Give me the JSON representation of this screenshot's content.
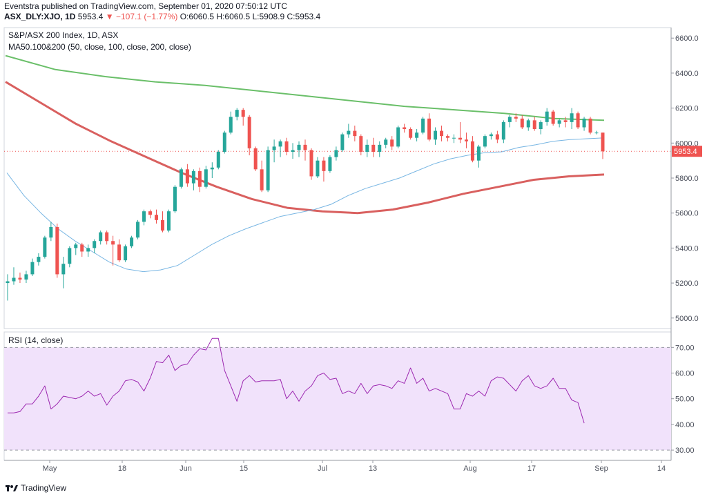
{
  "header": {
    "publisher_line": "Eventstra published on TradingView.com, September 01, 2020 07:50:12 UTC",
    "symbol": "ASX_DLY:XJO, 1D",
    "last": "5953.4",
    "change": "▼ −107.1 (−1.77%)",
    "ohlc_text": "O:6060.5 H:6060.5 L:5908.9 C:5953.4"
  },
  "price_pane_title": "S&P/ASX 200 Index, 1D, ASX",
  "ma_title": "MA50.100&200 (50, close, 100, close, 200, close)",
  "rsi_title": "RSI (14, close)",
  "footer_brand": "TradingView",
  "colors": {
    "up": "#26a69a",
    "down": "#ef5350",
    "ma50": "#78b6e3",
    "ma100": "#d9605f",
    "ma200": "#6abf69",
    "rsi": "#9c27b0",
    "rsi_band": "#f1e2fb"
  },
  "chart_data": [
    {
      "type": "candlestick",
      "title": "S&P/ASX 200 Index, 1D, ASX",
      "ylim": [
        4940,
        6660
      ],
      "y_ticks": [
        "5000.0",
        "5200.0",
        "5400.0",
        "5600.0",
        "5800.0",
        "6000.0",
        "6200.0",
        "6400.0",
        "6600.0"
      ],
      "x_tick_labels": [
        "May",
        "18",
        "Jun",
        "15",
        "Jul",
        "13",
        "Aug",
        "17",
        "Sep",
        "14"
      ],
      "last_price_label": "5953.4",
      "candles": [
        [
          5200,
          5250,
          5100,
          5210
        ],
        [
          5210,
          5290,
          5190,
          5230
        ],
        [
          5230,
          5260,
          5200,
          5220
        ],
        [
          5220,
          5270,
          5200,
          5250
        ],
        [
          5250,
          5340,
          5240,
          5320
        ],
        [
          5320,
          5370,
          5300,
          5350
        ],
        [
          5350,
          5470,
          5340,
          5460
        ],
        [
          5460,
          5550,
          5440,
          5520
        ],
        [
          5520,
          5540,
          5230,
          5250
        ],
        [
          5250,
          5350,
          5170,
          5310
        ],
        [
          5310,
          5410,
          5290,
          5400
        ],
        [
          5400,
          5430,
          5360,
          5420
        ],
        [
          5420,
          5430,
          5350,
          5380
        ],
        [
          5380,
          5420,
          5350,
          5400
        ],
        [
          5400,
          5450,
          5370,
          5440
        ],
        [
          5440,
          5500,
          5420,
          5490
        ],
        [
          5490,
          5500,
          5420,
          5440
        ],
        [
          5440,
          5470,
          5300,
          5420
        ],
        [
          5420,
          5450,
          5320,
          5330
        ],
        [
          5330,
          5420,
          5320,
          5410
        ],
        [
          5410,
          5470,
          5400,
          5460
        ],
        [
          5460,
          5560,
          5450,
          5550
        ],
        [
          5550,
          5620,
          5530,
          5610
        ],
        [
          5610,
          5620,
          5570,
          5590
        ],
        [
          5590,
          5620,
          5540,
          5560
        ],
        [
          5560,
          5610,
          5490,
          5500
        ],
        [
          5500,
          5620,
          5490,
          5610
        ],
        [
          5610,
          5760,
          5600,
          5750
        ],
        [
          5750,
          5860,
          5740,
          5850
        ],
        [
          5850,
          5880,
          5750,
          5770
        ],
        [
          5770,
          5850,
          5730,
          5840
        ],
        [
          5840,
          5860,
          5720,
          5750
        ],
        [
          5750,
          5870,
          5740,
          5850
        ],
        [
          5850,
          5890,
          5800,
          5860
        ],
        [
          5860,
          5960,
          5850,
          5950
        ],
        [
          5950,
          6070,
          5940,
          6060
        ],
        [
          6060,
          6180,
          6050,
          6150
        ],
        [
          6150,
          6200,
          6130,
          6190
        ],
        [
          6190,
          6200,
          6100,
          6150
        ],
        [
          6150,
          6160,
          5930,
          5970
        ],
        [
          5970,
          5980,
          5840,
          5850
        ],
        [
          5850,
          5900,
          5720,
          5730
        ],
        [
          5730,
          5980,
          5720,
          5960
        ],
        [
          5960,
          6020,
          5890,
          5980
        ],
        [
          5980,
          6020,
          5920,
          6010
        ],
        [
          6010,
          6030,
          5930,
          5950
        ],
        [
          5950,
          6000,
          5910,
          5960
        ],
        [
          5960,
          6010,
          5920,
          5990
        ],
        [
          5990,
          6020,
          5900,
          5960
        ],
        [
          5960,
          5970,
          5790,
          5810
        ],
        [
          5810,
          5920,
          5800,
          5900
        ],
        [
          5900,
          5920,
          5780,
          5840
        ],
        [
          5840,
          5930,
          5830,
          5920
        ],
        [
          5920,
          5980,
          5900,
          5960
        ],
        [
          5960,
          6060,
          5950,
          6050
        ],
        [
          6050,
          6110,
          6030,
          6070
        ],
        [
          6070,
          6100,
          6010,
          6040
        ],
        [
          6040,
          6050,
          5930,
          5950
        ],
        [
          5950,
          6020,
          5920,
          5990
        ],
        [
          5990,
          6030,
          5920,
          5950
        ],
        [
          5950,
          6010,
          5920,
          5990
        ],
        [
          5990,
          6030,
          5970,
          6020
        ],
        [
          6020,
          6040,
          5960,
          5980
        ],
        [
          5980,
          6100,
          5970,
          6090
        ],
        [
          6090,
          6110,
          6060,
          6080
        ],
        [
          6080,
          6090,
          6020,
          6030
        ],
        [
          6030,
          6080,
          6010,
          6060
        ],
        [
          6060,
          6150,
          6050,
          6140
        ],
        [
          6140,
          6170,
          6010,
          6020
        ],
        [
          6020,
          6090,
          5990,
          6070
        ],
        [
          6070,
          6100,
          6010,
          6040
        ],
        [
          6040,
          6050,
          6010,
          6030
        ],
        [
          6030,
          6050,
          6000,
          6030
        ],
        [
          6030,
          6120,
          6000,
          6020
        ],
        [
          6020,
          6060,
          5970,
          6010
        ],
        [
          6010,
          6040,
          5890,
          5900
        ],
        [
          5900,
          5990,
          5860,
          5980
        ],
        [
          5980,
          6050,
          5970,
          6040
        ],
        [
          6040,
          6060,
          6020,
          6050
        ],
        [
          6050,
          6070,
          6000,
          6020
        ],
        [
          6020,
          6130,
          6000,
          6120
        ],
        [
          6120,
          6160,
          6090,
          6150
        ],
        [
          6150,
          6170,
          6120,
          6140
        ],
        [
          6140,
          6160,
          6080,
          6090
        ],
        [
          6090,
          6140,
          6070,
          6130
        ],
        [
          6130,
          6150,
          6070,
          6080
        ],
        [
          6080,
          6130,
          6050,
          6120
        ],
        [
          6120,
          6200,
          6100,
          6180
        ],
        [
          6180,
          6190,
          6100,
          6110
        ],
        [
          6110,
          6140,
          6090,
          6130
        ],
        [
          6130,
          6150,
          6090,
          6120
        ],
        [
          6120,
          6200,
          6080,
          6170
        ],
        [
          6170,
          6180,
          6080,
          6090
        ],
        [
          6090,
          6150,
          6070,
          6140
        ],
        [
          6140,
          6150,
          6050,
          6060
        ],
        [
          6060,
          6070,
          6050,
          6060
        ],
        [
          6060,
          6060,
          5909,
          5953
        ]
      ],
      "series": [
        {
          "name": "MA50",
          "values": [
            5830,
            5700,
            5600,
            5510,
            5440,
            5380,
            5320,
            5280,
            5265,
            5275,
            5300,
            5360,
            5420,
            5470,
            5510,
            5545,
            5580,
            5600,
            5620,
            5650,
            5700,
            5740,
            5770,
            5800,
            5840,
            5880,
            5910,
            5930,
            5945,
            5950,
            5975,
            5990,
            6010,
            6020,
            6025,
            6030
          ]
        },
        {
          "name": "MA100",
          "values": [
            6350,
            6230,
            6110,
            6010,
            5920,
            5830,
            5750,
            5680,
            5630,
            5610,
            5600,
            5620,
            5660,
            5710,
            5750,
            5790,
            5810,
            5820
          ]
        },
        {
          "name": "MA200",
          "values": [
            6500,
            6420,
            6380,
            6350,
            6330,
            6300,
            6270,
            6240,
            6210,
            6190,
            6170,
            6140,
            6130
          ]
        }
      ]
    },
    {
      "type": "line",
      "title": "RSI (14, close)",
      "ylim": [
        26,
        76
      ],
      "y_ticks": [
        "30.00",
        "40.00",
        "50.00",
        "60.00",
        "70.00"
      ],
      "band": [
        30,
        70
      ],
      "series": [
        {
          "name": "RSI",
          "values": [
            44.5,
            44.5,
            45,
            48,
            48,
            51,
            55,
            46,
            48,
            51,
            50.5,
            50,
            51,
            53,
            51,
            52,
            47.5,
            51,
            53,
            57,
            57.5,
            56.5,
            53,
            58,
            64.5,
            64,
            67,
            61,
            63,
            63.5,
            67,
            69.5,
            69,
            73.5,
            73.5,
            61,
            55,
            49,
            57,
            59,
            56.5,
            57,
            57,
            57,
            57.5,
            50,
            53,
            49,
            53,
            55,
            59,
            60,
            57.5,
            58,
            52,
            53,
            52,
            56,
            52,
            55,
            55.5,
            55,
            54,
            57,
            56,
            62,
            56,
            58,
            53,
            54,
            53,
            52,
            46,
            46,
            52,
            51,
            53,
            51,
            57,
            58.5,
            58,
            55.5,
            53,
            57,
            59,
            55,
            54,
            55,
            58,
            54,
            54,
            49.5,
            48.5,
            40.5
          ]
        }
      ]
    }
  ]
}
